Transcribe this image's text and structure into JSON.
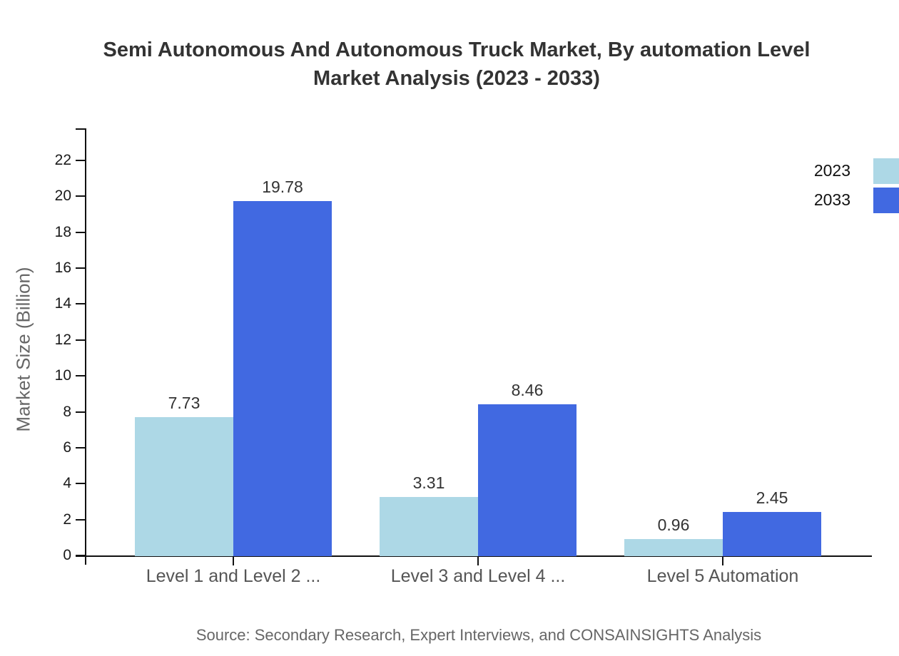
{
  "title": {
    "line1": "Semi Autonomous And Autonomous Truck Market, By automation Level",
    "line2": "Market Analysis (2023 - 2033)"
  },
  "source": "Source: Secondary Research, Expert Interviews, and CONSAINSIGHTS Analysis",
  "colors": {
    "series_2023": "#ADD8E6",
    "series_2033": "#4169E1",
    "axis": "#111111",
    "title_text": "#333333",
    "category_text": "#555555",
    "muted_text": "#666666"
  },
  "chart_data": {
    "type": "bar",
    "title": "Semi Autonomous And Autonomous Truck Market, By automation Level Market Analysis (2023 - 2033)",
    "ylabel": "Market Size (Billion)",
    "xlabel": "",
    "categories": [
      "Level 1 and Level 2 ...",
      "Level 3 and Level 4 ...",
      "Level 5 Automation"
    ],
    "series": [
      {
        "name": "2023",
        "color": "#ADD8E6",
        "values": [
          7.73,
          3.31,
          0.96
        ]
      },
      {
        "name": "2033",
        "color": "#4169E1",
        "values": [
          19.78,
          8.46,
          2.45
        ]
      }
    ],
    "value_labels": [
      "7.73",
      "19.78",
      "3.31",
      "8.46",
      "0.96",
      "2.45"
    ],
    "ylim": [
      0,
      23.8
    ],
    "yticks": [
      0,
      2,
      4,
      6,
      8,
      10,
      12,
      14,
      16,
      18,
      20,
      22
    ],
    "grid": false,
    "legend": {
      "entries": [
        "2023",
        "2033"
      ],
      "position": "top-right"
    }
  }
}
